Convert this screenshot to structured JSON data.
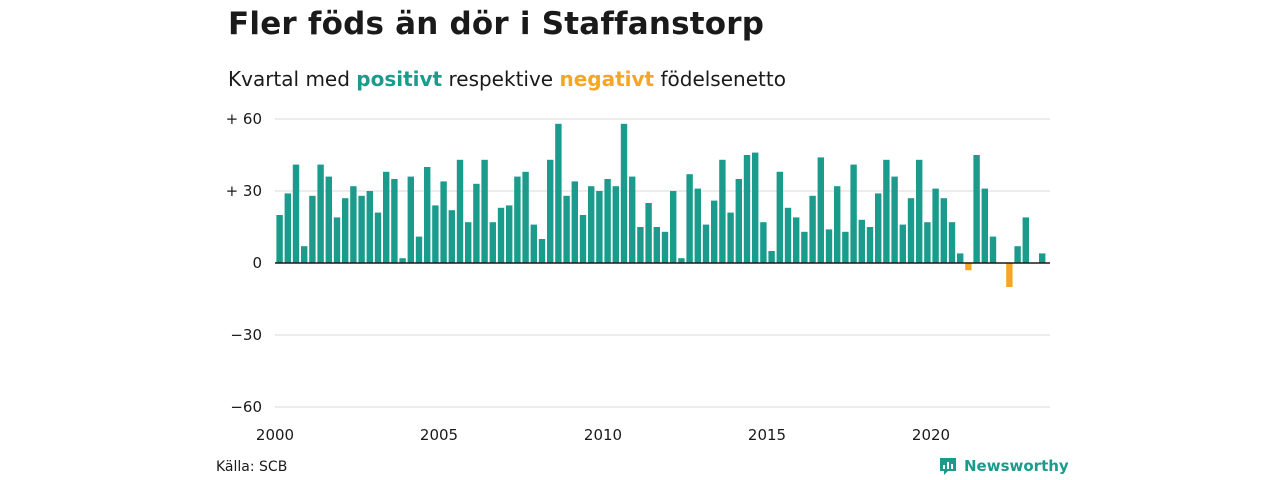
{
  "title": "Fler föds än dör i Staffanstorp",
  "subtitle": {
    "part1": "Kvartal med ",
    "positive_word": "positivt",
    "part2": " respektive ",
    "negative_word": "negativt",
    "part3": " födelsenetto"
  },
  "source": "Källa: SCB",
  "brand": {
    "name": "Newsworthy",
    "icon": "newsworthy-logo-icon"
  },
  "colors": {
    "positive": "#1a9b8c",
    "negative": "#f5a623",
    "grid": "#d9d9d9",
    "brand": "#1a9b8c"
  },
  "chart_data": {
    "type": "bar",
    "title": "Fler föds än dör i Staffanstorp",
    "ylim": [
      -60,
      60
    ],
    "yticks": [
      60,
      30,
      0,
      -30,
      -60
    ],
    "ytick_labels": [
      "+ 60",
      "+ 30",
      "0",
      "−30",
      "−60"
    ],
    "xticks": [
      "2000",
      "2005",
      "2010",
      "2015",
      "2020"
    ],
    "xlim_quarters": [
      "2000Q1",
      "2023Q2"
    ],
    "grid": true,
    "legend": "none",
    "series": [
      {
        "start": "2000Q1",
        "frequency": "quarter",
        "values": [
          20,
          29,
          41,
          7,
          28,
          41,
          36,
          19,
          27,
          32,
          28,
          30,
          21,
          38,
          35,
          2,
          36,
          11,
          40,
          24,
          34,
          22,
          43,
          17,
          33,
          43,
          17,
          23,
          24,
          36,
          38,
          16,
          10,
          43,
          58,
          28,
          34,
          20,
          32,
          30,
          35,
          32,
          58,
          36,
          15,
          25,
          15,
          13,
          30,
          2,
          37,
          31,
          16,
          26,
          43,
          21,
          35,
          45,
          46,
          17,
          5,
          38,
          23,
          19,
          13,
          28,
          44,
          14,
          32,
          13,
          41,
          18,
          15,
          29,
          43,
          36,
          16,
          27,
          43,
          17,
          31,
          27,
          17,
          4,
          -3,
          45,
          31,
          11,
          0,
          -10,
          7,
          19,
          0,
          4
        ]
      }
    ]
  }
}
